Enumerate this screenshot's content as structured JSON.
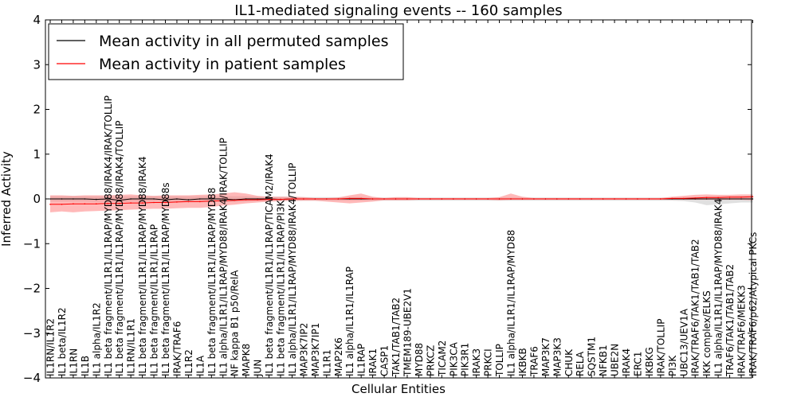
{
  "chart_data": {
    "type": "line",
    "title": "IL1-mediated signaling events -- 160 samples",
    "xlabel": "Cellular Entities",
    "ylabel": "Inferred Activity",
    "ylim": [
      -4,
      4
    ],
    "yticks": [
      -4,
      -3,
      -2,
      -1,
      0,
      1,
      2,
      3,
      4
    ],
    "ytick_labels": [
      "−4",
      "−3",
      "−2",
      "−1",
      "0",
      "1",
      "2",
      "3",
      "4"
    ],
    "grid": false,
    "legend_position": "top-left",
    "categories": [
      "IL1RN/IL1R2",
      "IL1 beta/IL1R2",
      "IL1RN",
      "IL1B",
      "IL1 alpha/IL1R2",
      "IL1 beta fragment/IL1R1/IL1RAP/MYD88/IRAK4/IRAK/TOLLIP",
      "IL1 beta fragment/IL1R1/IL1RAP/MYD88/IRAK4/TOLLIP",
      "IL1RN/IL1R1",
      "IL1 beta fragment/IL1R1/IL1RAP/MYD88/IRAK4",
      "IL1 beta fragment/IL1R1/IL1RAP",
      "IL1 beta fragment/IL1R1/IL1RAP/MYD88s",
      "IRAK/TRAF6",
      "IL1R2",
      "IL1A",
      "IL1 beta fragment/IL1R1/IL1RAP/MYD88",
      "IL1 alpha/IL1R1/IL1RAP/MYD88/IRAK4/IRAK/TOLLIP",
      "NF kappa B1 p50/RelA",
      "MAPK8",
      "JUN",
      "IL1 beta fragment/IL1R1/IL1RAP/TICAM2/IRAK4",
      "IL1 beta fragment/IL1R1/IL1RAP/PI3K",
      "IL1 alpha/IL1R1/IL1RAP/MYD88/IRAK4/TOLLIP",
      "MAP3K7IP2",
      "MAP3K7IP1",
      "IL1R1",
      "MAP2K6",
      "IL1 alpha/IL1R1/IL1RAP",
      "IL1RAP",
      "IRAK1",
      "CASP1",
      "TAK1/TAB1/TAB2",
      "TMEM189-UBE2V1",
      "MYD88",
      "PRKCZ",
      "TICAM2",
      "PIK3CA",
      "PIK3R1",
      "IRAK3",
      "PRKCI",
      "TOLLIP",
      "IL1 alpha/IL1R1/IL1RAP/MYD88",
      "IKBKB",
      "TRAF6",
      "MAP3K7",
      "MAP3K3",
      "CHUK",
      "RELA",
      "SQSTM1",
      "NFKB1",
      "UBE2N",
      "IRAK4",
      "ERC1",
      "IKBKG",
      "IRAK/TOLLIP",
      "PI3K",
      "UBC13/UEV1A",
      "IRAK/TRAF6/TAK1/TAB1/TAB2",
      "IKK complex/ELKS",
      "IL1 alpha/IL1R1/IL1RAP/MYD88/IRAK4",
      "TRAF6/TAK1/TAB1/TAB2",
      "IRAK/TRAF6/MEKK3",
      "IRAK/TRAF6/p62/Atypical PKCs"
    ],
    "series": [
      {
        "name": "Mean activity in all permuted samples",
        "color": "#000000",
        "band_color": "#bbbbbb",
        "values": [
          0.0,
          0.0,
          0.0,
          0.0,
          -0.01,
          0.0,
          -0.03,
          0.0,
          0.0,
          0.0,
          -0.02,
          0.0,
          -0.02,
          0.0,
          0.0,
          0.0,
          -0.02,
          0.0,
          0.0,
          0.0,
          -0.01,
          0.0,
          0.0,
          0.0,
          0.0,
          0.0,
          0.0,
          0.0,
          0.0,
          0.0,
          0.0,
          0.0,
          0.0,
          0.0,
          0.0,
          0.0,
          0.0,
          0.0,
          0.0,
          0.0,
          0.0,
          0.0,
          0.0,
          0.0,
          0.0,
          0.0,
          0.0,
          0.0,
          0.0,
          0.0,
          0.0,
          0.0,
          0.0,
          0.0,
          0.0,
          0.0,
          0.0,
          0.0,
          0.0,
          0.0,
          0.0,
          0.0
        ],
        "band_upper": [
          0.06,
          0.06,
          0.06,
          0.06,
          0.06,
          0.06,
          0.06,
          0.06,
          0.06,
          0.06,
          0.06,
          0.06,
          0.06,
          0.06,
          0.06,
          0.06,
          0.06,
          0.06,
          0.05,
          0.05,
          0.05,
          0.05,
          0.04,
          0.04,
          0.04,
          0.04,
          0.04,
          0.04,
          0.03,
          0.03,
          0.03,
          0.03,
          0.03,
          0.03,
          0.03,
          0.03,
          0.03,
          0.03,
          0.03,
          0.03,
          0.03,
          0.03,
          0.03,
          0.03,
          0.03,
          0.03,
          0.03,
          0.03,
          0.03,
          0.03,
          0.03,
          0.03,
          0.03,
          0.03,
          0.03,
          0.03,
          0.04,
          0.05,
          0.05,
          0.05,
          0.06,
          0.06
        ],
        "band_lower": [
          -0.06,
          -0.06,
          -0.06,
          -0.06,
          -0.07,
          -0.06,
          -0.08,
          -0.06,
          -0.06,
          -0.06,
          -0.07,
          -0.06,
          -0.07,
          -0.06,
          -0.06,
          -0.06,
          -0.07,
          -0.06,
          -0.05,
          -0.05,
          -0.05,
          -0.05,
          -0.04,
          -0.04,
          -0.04,
          -0.04,
          -0.04,
          -0.04,
          -0.04,
          -0.04,
          -0.04,
          -0.04,
          -0.04,
          -0.04,
          -0.04,
          -0.04,
          -0.04,
          -0.04,
          -0.04,
          -0.04,
          -0.04,
          -0.04,
          -0.04,
          -0.04,
          -0.04,
          -0.04,
          -0.04,
          -0.04,
          -0.04,
          -0.04,
          -0.04,
          -0.04,
          -0.04,
          -0.04,
          -0.04,
          -0.05,
          -0.08,
          -0.14,
          -0.12,
          -0.1,
          -0.08,
          -0.08
        ]
      },
      {
        "name": "Mean activity in patient samples",
        "color": "#ff0000",
        "band_color": "#ff8080",
        "values": [
          -0.12,
          -0.12,
          -0.11,
          -0.11,
          -0.11,
          -0.1,
          -0.1,
          -0.09,
          -0.09,
          -0.08,
          -0.08,
          -0.07,
          -0.06,
          -0.06,
          -0.05,
          -0.04,
          -0.03,
          -0.02,
          -0.02,
          -0.01,
          -0.01,
          0.0,
          0.0,
          0.0,
          0.0,
          0.0,
          0.01,
          0.01,
          0.0,
          0.0,
          0.0,
          0.0,
          0.0,
          0.0,
          0.0,
          0.0,
          0.0,
          0.0,
          0.0,
          0.0,
          0.0,
          0.0,
          0.0,
          0.0,
          0.0,
          0.0,
          0.0,
          0.0,
          0.0,
          0.0,
          0.0,
          0.0,
          0.0,
          0.0,
          0.01,
          0.01,
          0.02,
          0.03,
          0.03,
          0.04,
          0.04,
          0.05
        ],
        "band_upper": [
          0.08,
          0.08,
          0.07,
          0.08,
          0.08,
          0.08,
          0.09,
          0.1,
          0.08,
          0.07,
          0.08,
          0.08,
          0.08,
          0.09,
          0.1,
          0.12,
          0.15,
          0.12,
          0.07,
          0.05,
          0.05,
          0.05,
          0.04,
          0.02,
          0.02,
          0.03,
          0.08,
          0.12,
          0.05,
          0.02,
          0.04,
          0.04,
          0.02,
          0.02,
          0.02,
          0.02,
          0.02,
          0.02,
          0.02,
          0.04,
          0.12,
          0.05,
          0.02,
          0.02,
          0.02,
          0.02,
          0.02,
          0.02,
          0.02,
          0.02,
          0.02,
          0.02,
          0.02,
          0.02,
          0.05,
          0.07,
          0.09,
          0.1,
          0.09,
          0.09,
          0.1,
          0.1
        ],
        "band_lower": [
          -0.3,
          -0.28,
          -0.3,
          -0.28,
          -0.27,
          -0.26,
          -0.25,
          -0.24,
          -0.23,
          -0.22,
          -0.22,
          -0.21,
          -0.2,
          -0.2,
          -0.18,
          -0.15,
          -0.13,
          -0.1,
          -0.08,
          -0.06,
          -0.05,
          -0.04,
          -0.04,
          -0.04,
          -0.06,
          -0.08,
          -0.1,
          -0.08,
          -0.06,
          -0.03,
          -0.03,
          -0.03,
          -0.02,
          -0.02,
          -0.02,
          -0.02,
          -0.02,
          -0.02,
          -0.02,
          -0.03,
          -0.02,
          -0.02,
          -0.02,
          -0.02,
          -0.02,
          -0.02,
          -0.02,
          -0.02,
          -0.02,
          -0.02,
          -0.02,
          -0.02,
          -0.02,
          -0.02,
          -0.02,
          -0.02,
          -0.02,
          -0.02,
          -0.02,
          -0.02,
          -0.02,
          -0.03
        ]
      }
    ]
  }
}
